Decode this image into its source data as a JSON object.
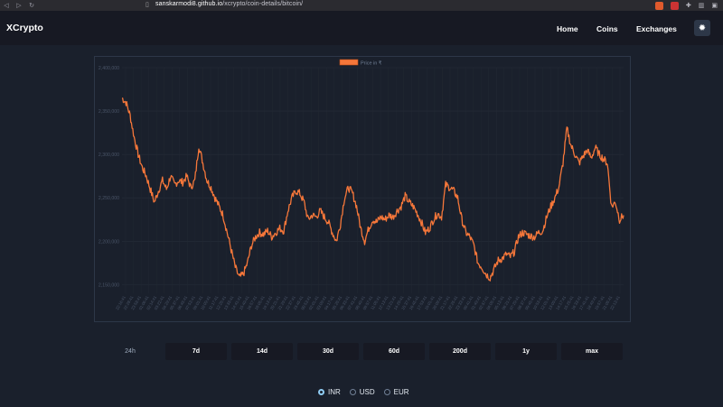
{
  "browser": {
    "url_host": "sanskarmodi8.github.io",
    "url_path": "/xcrypto/coin-details/bitcoin/"
  },
  "header": {
    "brand": "XCrypto",
    "nav": [
      "Home",
      "Coins",
      "Exchanges"
    ],
    "theme_icon": "sun-icon"
  },
  "chart_data": {
    "type": "line",
    "legend": "Price in ₹",
    "ylim": [
      2140000,
      2400000
    ],
    "y_ticks": [
      "2,400,000",
      "2,350,000",
      "2,300,000",
      "2,250,000",
      "2,200,000",
      "2,150,000"
    ],
    "series": [
      {
        "name": "Price in ₹",
        "color": "#f6773a",
        "values": [
          2365000,
          2360000,
          2345000,
          2320000,
          2300000,
          2285000,
          2275000,
          2260000,
          2245000,
          2258000,
          2270000,
          2260000,
          2275000,
          2265000,
          2270000,
          2268000,
          2275000,
          2262000,
          2270000,
          2310000,
          2290000,
          2270000,
          2262000,
          2250000,
          2240000,
          2230000,
          2210000,
          2190000,
          2170000,
          2158000,
          2162000,
          2175000,
          2195000,
          2205000,
          2210000,
          2208000,
          2212000,
          2205000,
          2210000,
          2215000,
          2212000,
          2235000,
          2250000,
          2258000,
          2255000,
          2245000,
          2225000,
          2230000,
          2228000,
          2235000,
          2228000,
          2222000,
          2210000,
          2200000,
          2220000,
          2250000,
          2262000,
          2255000,
          2240000,
          2215000,
          2200000,
          2215000,
          2225000,
          2222000,
          2228000,
          2225000,
          2230000,
          2228000,
          2235000,
          2240000,
          2252000,
          2245000,
          2240000,
          2232000,
          2222000,
          2210000,
          2215000,
          2225000,
          2232000,
          2228000,
          2265000,
          2262000,
          2258000,
          2250000,
          2225000,
          2210000,
          2205000,
          2195000,
          2175000,
          2170000,
          2162000,
          2158000,
          2168000,
          2178000,
          2180000,
          2185000,
          2182000,
          2188000,
          2205000,
          2210000,
          2208000,
          2206000,
          2205000,
          2210000,
          2212000,
          2228000,
          2240000,
          2250000,
          2262000,
          2290000,
          2330000,
          2310000,
          2300000,
          2290000,
          2298000,
          2305000,
          2296000,
          2308000,
          2300000,
          2295000,
          2290000,
          2240000,
          2245000,
          2225000,
          2230000
        ]
      }
    ],
    "x_ticks": [
      "22:16:41",
      "22:28:41",
      "23:58:41",
      "01:06:41",
      "02:14:41",
      "03:22:41",
      "04:29:41",
      "05:37:41",
      "06:45:41",
      "07:53:41",
      "09:01:41",
      "10:09:41",
      "11:17:41",
      "12:25:41",
      "13:33:41",
      "14:41:41",
      "15:49:41",
      "16:57:41",
      "18:05:41",
      "19:13:41",
      "20:21:41",
      "21:29:41",
      "22:37:41",
      "23:45:41",
      "00:53:41",
      "02:01:41",
      "03:09:41",
      "04:17:41",
      "05:25:41",
      "06:33:41",
      "07:41:41",
      "08:49:41",
      "09:57:41",
      "11:05:41",
      "12:13:41",
      "13:21:41",
      "14:29:41",
      "15:37:41",
      "16:45:41",
      "17:53:41",
      "19:01:41",
      "20:09:41",
      "21:17:41",
      "22:25:41",
      "23:33:41",
      "00:41:41",
      "01:49:41",
      "02:57:41",
      "04:05:41",
      "05:13:41",
      "06:21:41",
      "07:29:41",
      "08:37:41",
      "09:45:41",
      "10:53:41",
      "12:01:41",
      "13:09:41",
      "14:17:41",
      "15:25:41",
      "16:33:41",
      "17:41:41",
      "18:49:41",
      "19:57:41",
      "21:05:41",
      "22:13:41"
    ],
    "grid": true
  },
  "ranges": {
    "items": [
      "24h",
      "7d",
      "14d",
      "30d",
      "60d",
      "200d",
      "1y",
      "max"
    ],
    "active": "24h"
  },
  "currency": {
    "options": [
      "INR",
      "USD",
      "EUR"
    ],
    "selected": "INR"
  },
  "colors": {
    "background": "#1a202c",
    "header": "#171923",
    "line": "#f6773a"
  }
}
